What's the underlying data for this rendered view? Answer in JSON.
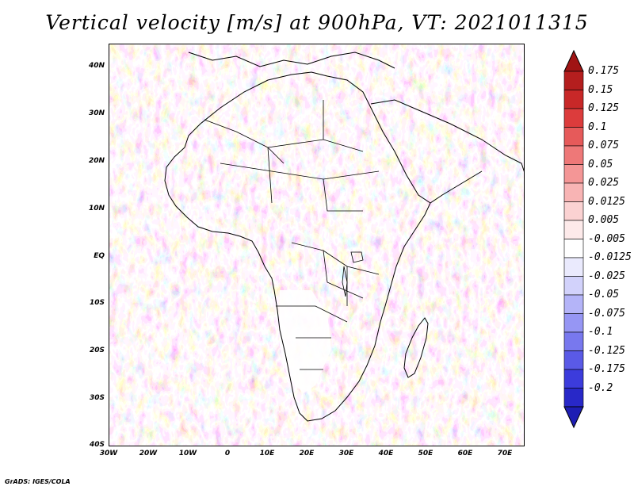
{
  "title": "Vertical velocity [m/s] at 900hPa, VT: 2021011315",
  "map": {
    "region": "Africa",
    "lat_range": [
      -40,
      45
    ],
    "lon_range": [
      -30,
      75
    ],
    "lat_ticks": [
      {
        "value": 40,
        "label": "40N"
      },
      {
        "value": 30,
        "label": "30N"
      },
      {
        "value": 20,
        "label": "20N"
      },
      {
        "value": 10,
        "label": "10N"
      },
      {
        "value": 0,
        "label": "EQ"
      },
      {
        "value": -10,
        "label": "10S"
      },
      {
        "value": -20,
        "label": "20S"
      },
      {
        "value": -30,
        "label": "30S"
      },
      {
        "value": -40,
        "label": "40S"
      }
    ],
    "lon_ticks": [
      {
        "value": -30,
        "label": "30W"
      },
      {
        "value": -20,
        "label": "20W"
      },
      {
        "value": -10,
        "label": "10W"
      },
      {
        "value": 0,
        "label": "0"
      },
      {
        "value": 10,
        "label": "10E"
      },
      {
        "value": 20,
        "label": "20E"
      },
      {
        "value": 30,
        "label": "30E"
      },
      {
        "value": 40,
        "label": "40E"
      },
      {
        "value": 50,
        "label": "50E"
      },
      {
        "value": 60,
        "label": "60E"
      },
      {
        "value": 70,
        "label": "70E"
      }
    ]
  },
  "colorbar": {
    "levels": [
      {
        "label": "0.175",
        "color": "#b41e1e"
      },
      {
        "label": "0.15",
        "color": "#c82828"
      },
      {
        "label": "0.125",
        "color": "#dc3c3c"
      },
      {
        "label": "0.1",
        "color": "#e65a5a"
      },
      {
        "label": "0.075",
        "color": "#ee7878"
      },
      {
        "label": "0.05",
        "color": "#f49696"
      },
      {
        "label": "0.025",
        "color": "#f8b4b4"
      },
      {
        "label": "0.0125",
        "color": "#fbd2d2"
      },
      {
        "label": "0.005",
        "color": "#fdeaea"
      },
      {
        "label": "-0.005",
        "color": "#ffffff"
      },
      {
        "label": "-0.0125",
        "color": "#eaeafd"
      },
      {
        "label": "-0.025",
        "color": "#d2d2fb"
      },
      {
        "label": "-0.05",
        "color": "#b4b4f8"
      },
      {
        "label": "-0.075",
        "color": "#9696f4"
      },
      {
        "label": "-0.1",
        "color": "#7878ee"
      },
      {
        "label": "-0.125",
        "color": "#5a5ae6"
      },
      {
        "label": "-0.175",
        "color": "#3c3cdc"
      },
      {
        "label": "-0.2",
        "color": "#2828c8"
      }
    ],
    "top_arrow_color": "#a01414",
    "bottom_arrow_color": "#1e1eb4"
  },
  "credit": "GrADS: IGES/COLA"
}
